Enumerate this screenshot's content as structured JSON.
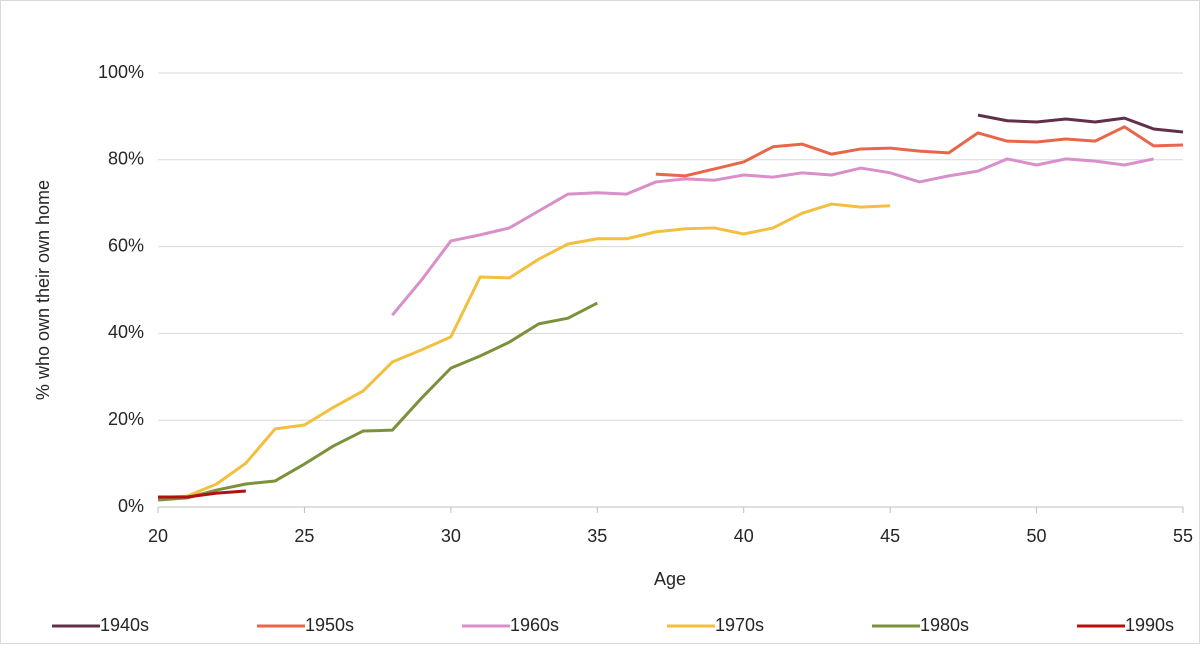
{
  "chart_data": {
    "type": "line",
    "x_label": "Age",
    "y_label": "% who own their own home",
    "x": [
      20,
      21,
      22,
      23,
      24,
      25,
      26,
      27,
      28,
      29,
      30,
      31,
      32,
      33,
      34,
      35,
      36,
      37,
      38,
      39,
      40,
      41,
      42,
      43,
      44,
      45,
      46,
      47,
      48,
      49,
      50,
      51,
      52,
      53,
      54,
      55
    ],
    "xlim": [
      20,
      55
    ],
    "xticks": [
      20,
      25,
      30,
      35,
      40,
      45,
      50,
      55
    ],
    "ylim": [
      0,
      100
    ],
    "yticks": [
      {
        "value": 0,
        "label": "0%"
      },
      {
        "value": 20,
        "label": "20%"
      },
      {
        "value": 40,
        "label": "40%"
      },
      {
        "value": 60,
        "label": "60%"
      },
      {
        "value": 80,
        "label": "80%"
      },
      {
        "value": 100,
        "label": "100%"
      }
    ],
    "grid": true,
    "legend": "bottom",
    "series": [
      {
        "name": "1940s",
        "color": "#603048",
        "values": [
          null,
          null,
          null,
          null,
          null,
          null,
          null,
          null,
          null,
          null,
          null,
          null,
          null,
          null,
          null,
          null,
          null,
          null,
          null,
          null,
          null,
          null,
          null,
          null,
          null,
          null,
          null,
          null,
          90.3,
          89,
          88.7,
          89.4,
          88.7,
          89.6,
          87.1,
          86.4
        ]
      },
      {
        "name": "1950s",
        "color": "#e8674a",
        "values": [
          null,
          null,
          null,
          null,
          null,
          null,
          null,
          null,
          null,
          null,
          null,
          null,
          null,
          null,
          null,
          null,
          null,
          76.7,
          76.3,
          77.9,
          79.5,
          83,
          83.6,
          81.3,
          82.5,
          82.7,
          82,
          81.6,
          86.2,
          84.3,
          84.1,
          84.8,
          84.3,
          87.6,
          83.2,
          83.4
        ]
      },
      {
        "name": "1960s",
        "color": "#d98fc9",
        "values": [
          null,
          null,
          null,
          null,
          null,
          null,
          null,
          null,
          44.2,
          52.3,
          61.3,
          62.7,
          64.3,
          68.2,
          72.1,
          72.4,
          72.1,
          74.9,
          75.6,
          75.3,
          76.5,
          76,
          77,
          76.5,
          78.1,
          77,
          74.9,
          76.3,
          77.4,
          80.2,
          78.8,
          80.2,
          79.7,
          78.8,
          80.2,
          null
        ]
      },
      {
        "name": "1970s",
        "color": "#f2bf3f",
        "values": [
          2.1,
          2.5,
          5.3,
          10.1,
          18,
          18.9,
          23,
          26.7,
          33.4,
          36.2,
          39.2,
          53,
          52.8,
          57.1,
          60.6,
          61.8,
          61.8,
          63.4,
          64.1,
          64.3,
          62.9,
          64.3,
          67.7,
          69.8,
          69.1,
          69.4,
          null,
          null,
          null,
          null,
          null,
          null,
          null,
          null,
          null,
          null
        ]
      },
      {
        "name": "1980s",
        "color": "#7b913d",
        "values": [
          1.6,
          2.1,
          3.9,
          5.3,
          6,
          9.9,
          14.1,
          17.5,
          17.7,
          25.1,
          32,
          34.8,
          38,
          42.2,
          43.5,
          47,
          null,
          null,
          null,
          null,
          null,
          null,
          null,
          null,
          null,
          null,
          null,
          null,
          null,
          null,
          null,
          null,
          null,
          null,
          null,
          null
        ]
      },
      {
        "name": "1990s",
        "color": "#b50f12",
        "values": [
          2.3,
          2.3,
          3.2,
          3.7,
          null,
          null,
          null,
          null,
          null,
          null,
          null,
          null,
          null,
          null,
          null,
          null,
          null,
          null,
          null,
          null,
          null,
          null,
          null,
          null,
          null,
          null,
          null,
          null,
          null,
          null,
          null,
          null,
          null,
          null,
          null,
          null
        ]
      }
    ]
  }
}
